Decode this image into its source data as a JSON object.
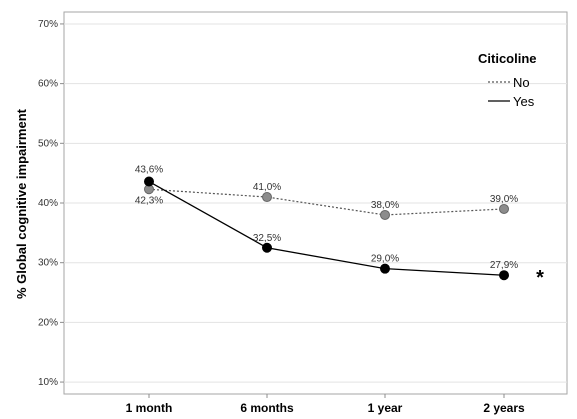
{
  "chart_data": {
    "type": "line",
    "ylabel": "% Global cognitive impairment",
    "xlabel": "",
    "categories": [
      "1 month",
      "6 months",
      "1 year",
      "2 years"
    ],
    "ylim": [
      8,
      72
    ],
    "yticks": [
      10,
      20,
      30,
      40,
      50,
      60,
      70
    ],
    "ytick_labels": [
      "10%",
      "20%",
      "30%",
      "40%",
      "50%",
      "60%",
      "70%"
    ],
    "grid": true,
    "legend": {
      "title": "Citicoline",
      "placement": "top-right"
    },
    "series": [
      {
        "name": "No",
        "line_style": "dotted",
        "marker_color": "#8c8c8c",
        "values": [
          42.3,
          41.0,
          38.0,
          39.0
        ],
        "labels": [
          "42,3%",
          "41,0%",
          "38,0%",
          "39,0%"
        ]
      },
      {
        "name": "Yes",
        "line_style": "solid",
        "marker_color": "#000000",
        "values": [
          43.6,
          32.5,
          29.0,
          27.9
        ],
        "labels": [
          "43,6%",
          "32,5%",
          "29,0%",
          "27,9%"
        ]
      }
    ],
    "annotations": [
      {
        "text": "*",
        "series": "Yes",
        "category": "2 years"
      }
    ]
  }
}
